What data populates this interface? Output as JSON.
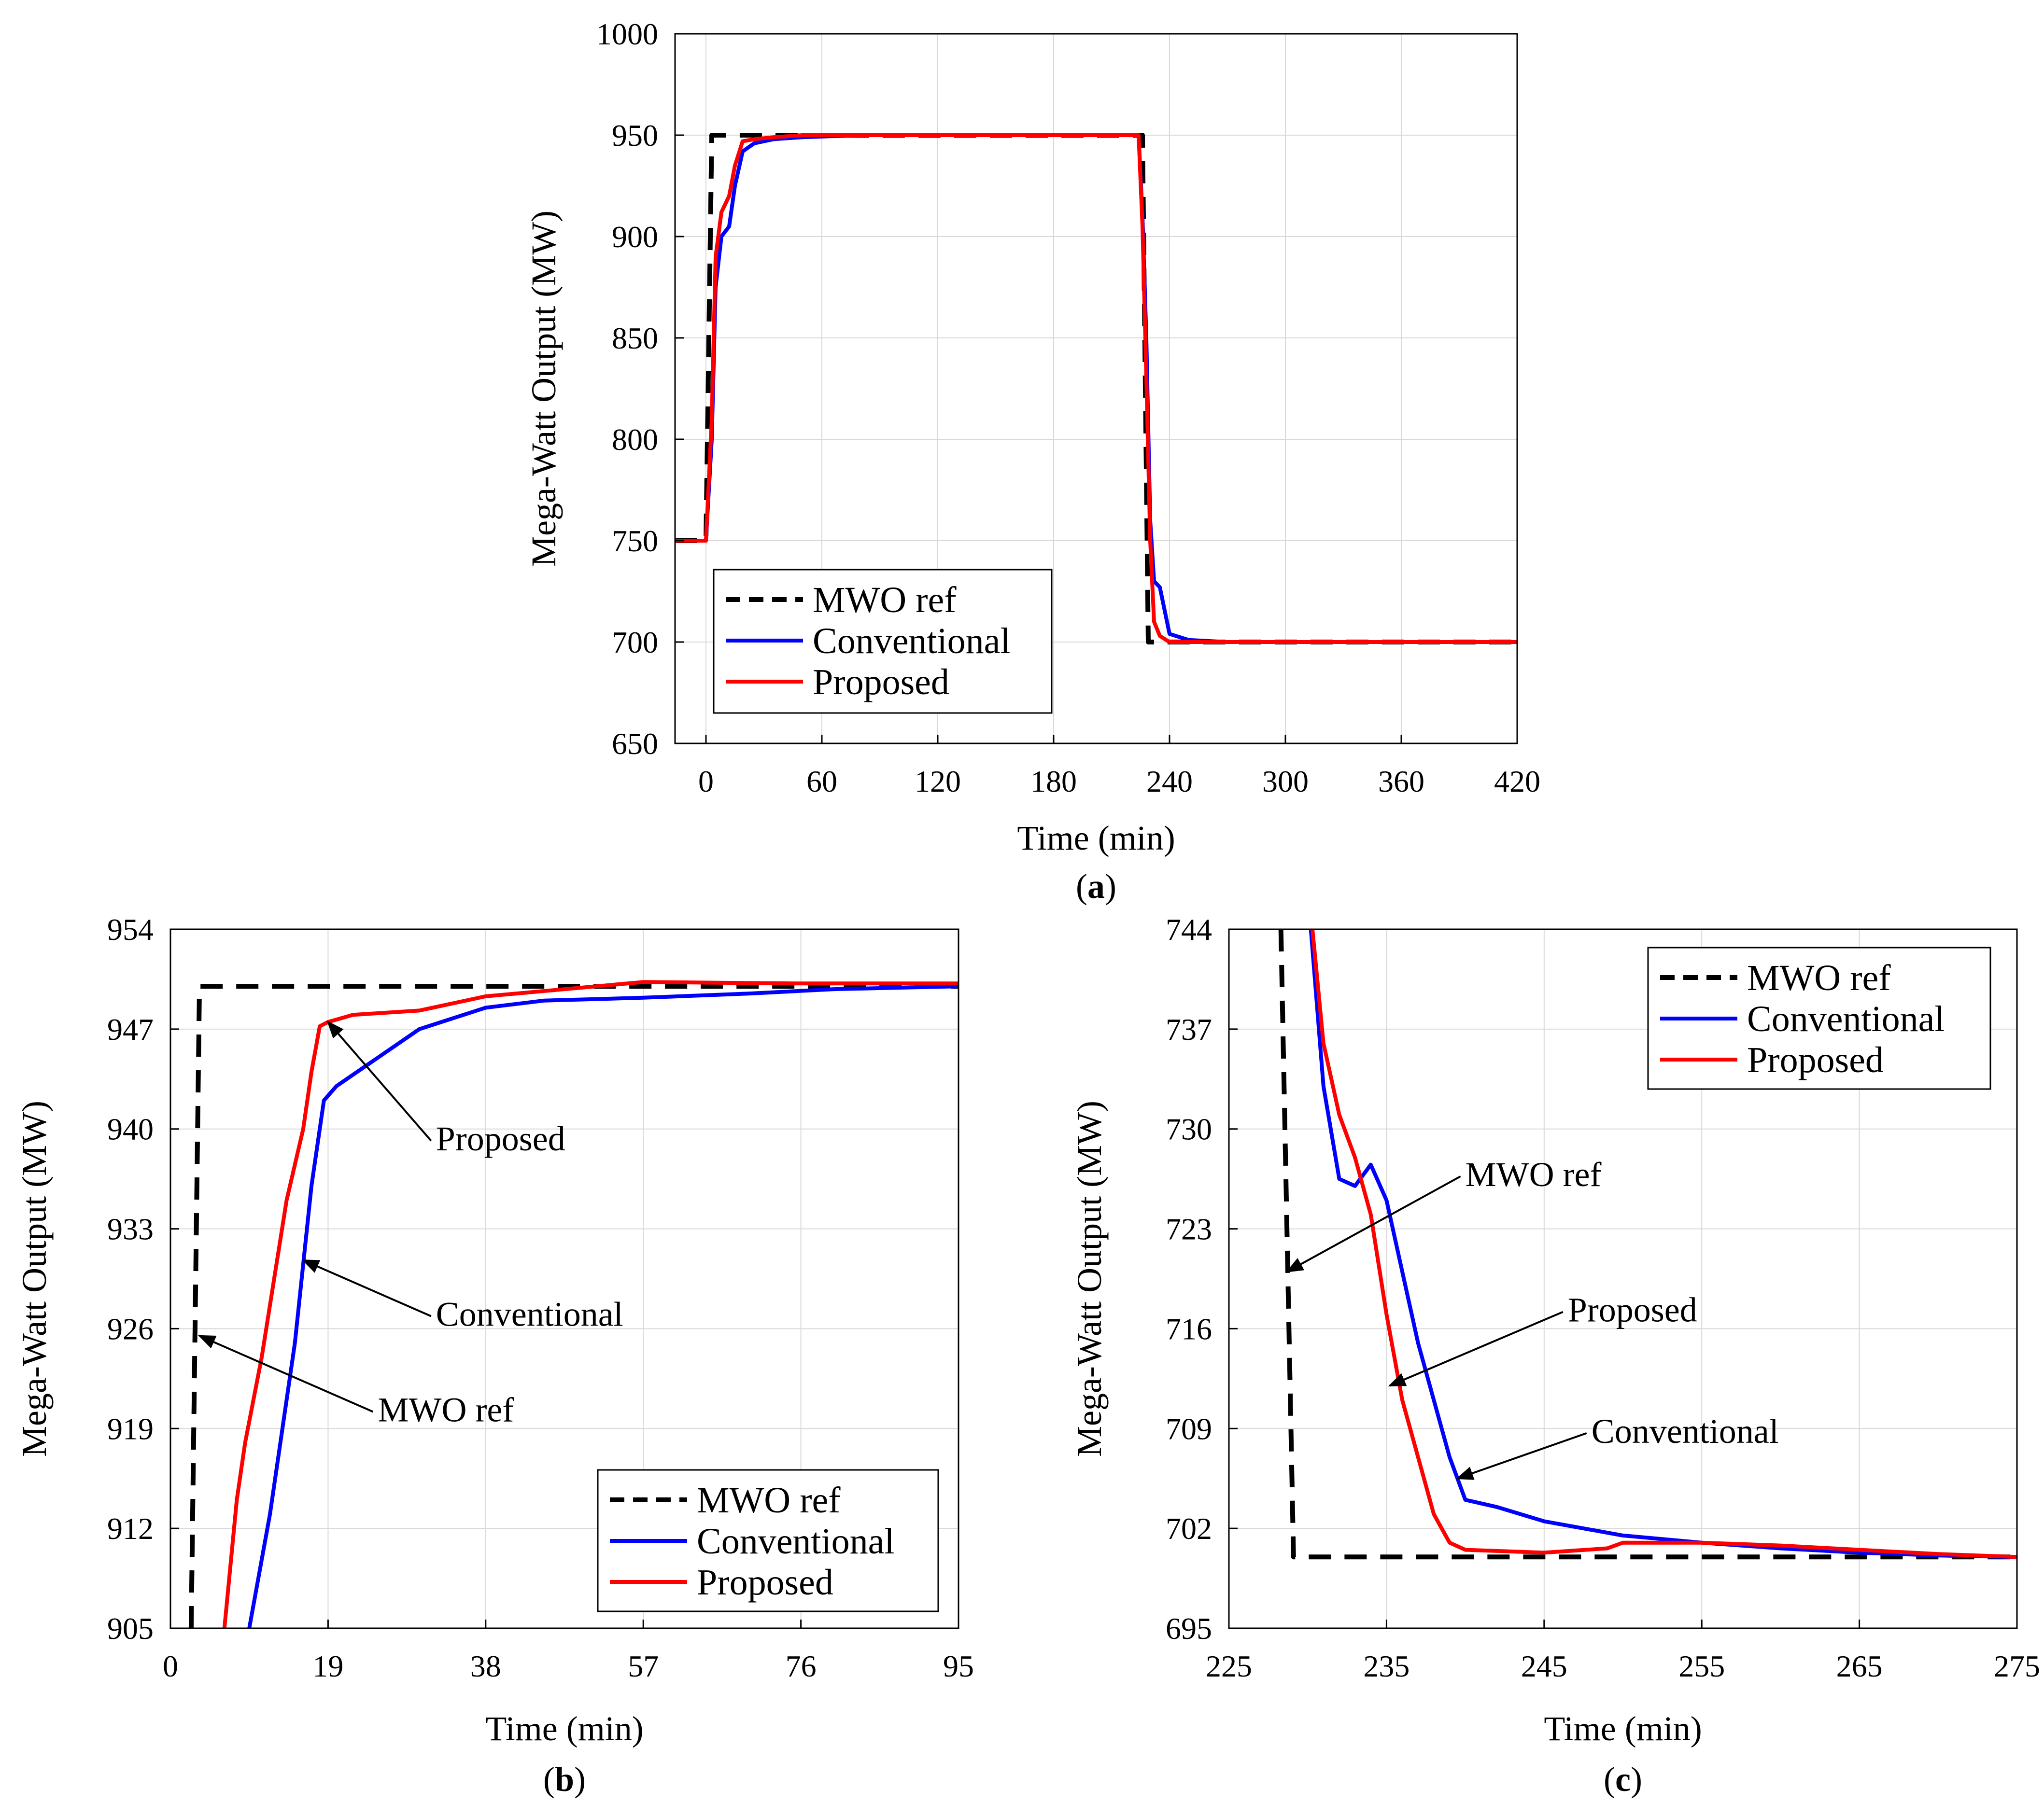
{
  "chart_data": [
    {
      "id": "a",
      "type": "line",
      "caption_open": "(",
      "caption_letter": "a",
      "caption_close": ")",
      "xlabel": "Time (min)",
      "ylabel": "Mega-Watt Output (MW)",
      "xlim": [
        -16,
        420
      ],
      "ylim": [
        650,
        1000
      ],
      "xticks": [
        0,
        60,
        120,
        180,
        240,
        300,
        360,
        420
      ],
      "yticks": [
        650,
        700,
        750,
        800,
        850,
        900,
        950,
        1000
      ],
      "grid": true,
      "legend": {
        "position": "bottom-left",
        "entries": [
          "MWO ref",
          "Conventional",
          "Proposed"
        ]
      },
      "series": [
        {
          "name": "MWO ref",
          "style": "dashed",
          "color": "#000000",
          "x": [
            -16,
            0,
            3,
            5,
            220,
            226,
            229,
            233,
            420
          ],
          "y": [
            750,
            750,
            950,
            950,
            950,
            950,
            700,
            700,
            700
          ]
        },
        {
          "name": "Conventional",
          "style": "solid",
          "color": "#0000ff",
          "x": [
            -16,
            0,
            3,
            5,
            8,
            12,
            15,
            19,
            25,
            35,
            50,
            80,
            120,
            180,
            224,
            226,
            228,
            230,
            232,
            235,
            240,
            250,
            270,
            300,
            360,
            420
          ],
          "y": [
            750,
            750,
            800,
            875,
            900,
            905,
            925,
            942,
            946,
            948,
            949,
            950,
            950,
            950,
            950,
            910,
            850,
            760,
            730,
            727,
            704,
            701,
            700,
            700,
            700,
            700
          ]
        },
        {
          "name": "Proposed",
          "style": "solid",
          "color": "#ff0000",
          "x": [
            -16,
            0,
            3,
            5,
            8,
            12,
            15,
            19,
            25,
            35,
            50,
            80,
            120,
            180,
            224,
            226,
            228,
            230,
            232,
            235,
            240,
            250,
            270,
            300,
            360,
            420
          ],
          "y": [
            750,
            750,
            810,
            890,
            912,
            920,
            935,
            947,
            948,
            949,
            950,
            950,
            950,
            950,
            950,
            905,
            830,
            750,
            710,
            703,
            700,
            700,
            700,
            700,
            700,
            700
          ]
        }
      ],
      "annotations": []
    },
    {
      "id": "b",
      "type": "line",
      "caption_open": "(",
      "caption_letter": "b",
      "caption_close": ")",
      "xlabel": "Time (min)",
      "ylabel": "Mega-Watt Output (MW)",
      "xlim": [
        0,
        95
      ],
      "ylim": [
        905,
        954
      ],
      "xticks": [
        0,
        19,
        38,
        57,
        76,
        95
      ],
      "yticks": [
        905,
        912,
        919,
        926,
        933,
        940,
        947,
        954
      ],
      "grid": true,
      "legend": {
        "position": "bottom-right",
        "entries": [
          "MWO ref",
          "Conventional",
          "Proposed"
        ]
      },
      "series": [
        {
          "name": "MWO ref",
          "style": "dashed",
          "color": "#000000",
          "x": [
            2.5,
            3.5,
            95
          ],
          "y": [
            905,
            950,
            950
          ]
        },
        {
          "name": "Conventional",
          "style": "solid",
          "color": "#0000ff",
          "x": [
            9.5,
            12,
            15,
            17,
            18.5,
            20,
            25,
            30,
            38,
            45,
            57,
            70,
            80,
            95
          ],
          "y": [
            905,
            913,
            925,
            936,
            942,
            943,
            945,
            947,
            948.5,
            949,
            949.2,
            949.5,
            949.8,
            950
          ]
        },
        {
          "name": "Proposed",
          "style": "solid",
          "color": "#ff0000",
          "x": [
            6.5,
            8,
            9,
            11,
            14,
            16,
            17,
            18,
            19,
            22,
            30,
            38,
            57,
            76,
            95
          ],
          "y": [
            905,
            914,
            918,
            924,
            935,
            940,
            944,
            947.2,
            947.5,
            948,
            948.3,
            949.3,
            950.3,
            950.2,
            950.2
          ]
        }
      ],
      "annotations": [
        {
          "text": "Proposed",
          "tip_x": 19,
          "tip_y": 947.5,
          "text_x": 32,
          "text_y": 938.5
        },
        {
          "text": "Conventional",
          "tip_x": 16,
          "tip_y": 930.8,
          "text_x": 32,
          "text_y": 926.2
        },
        {
          "text": "MWO ref",
          "tip_x": 3.5,
          "tip_y": 925.5,
          "text_x": 25,
          "text_y": 919.5
        }
      ]
    },
    {
      "id": "c",
      "type": "line",
      "caption_open": "(",
      "caption_letter": "c",
      "caption_close": ")",
      "xlabel": "Time (min)",
      "ylabel": "Mega-Watt Output (MW)",
      "xlim": [
        225,
        275
      ],
      "ylim": [
        695,
        744
      ],
      "xticks": [
        225,
        235,
        245,
        255,
        265,
        275
      ],
      "yticks": [
        695,
        702,
        709,
        716,
        723,
        730,
        737,
        744
      ],
      "grid": true,
      "legend": {
        "position": "top-right",
        "entries": [
          "MWO ref",
          "Conventional",
          "Proposed"
        ]
      },
      "series": [
        {
          "name": "MWO ref",
          "style": "dashed",
          "color": "#000000",
          "x": [
            228.3,
            229.1,
            275
          ],
          "y": [
            744,
            700,
            700
          ]
        },
        {
          "name": "Conventional",
          "style": "solid",
          "color": "#0000ff",
          "x": [
            230.2,
            231,
            232,
            233,
            234,
            235,
            236,
            237,
            238,
            239,
            240,
            242,
            245,
            250,
            255,
            260,
            265,
            270,
            275
          ],
          "y": [
            744,
            733,
            726.5,
            726,
            727.5,
            725,
            720,
            715,
            711,
            707,
            704,
            703.5,
            702.5,
            701.5,
            701,
            700.6,
            700.3,
            700.1,
            700
          ]
        },
        {
          "name": "Proposed",
          "style": "solid",
          "color": "#ff0000",
          "x": [
            230.3,
            231,
            232,
            233,
            234,
            235,
            236,
            237,
            238,
            239,
            240,
            245,
            249,
            250,
            255,
            260,
            265,
            270,
            275
          ],
          "y": [
            744,
            736,
            731,
            728,
            724,
            717,
            711,
            707,
            703,
            701,
            700.5,
            700.3,
            700.6,
            701,
            701,
            700.8,
            700.5,
            700.2,
            700
          ]
        }
      ],
      "annotations": [
        {
          "text": "MWO ref",
          "tip_x": 228.7,
          "tip_y": 720,
          "text_x": 240,
          "text_y": 726
        },
        {
          "text": "Proposed",
          "tip_x": 235.2,
          "tip_y": 712,
          "text_x": 246.5,
          "text_y": 716.5
        },
        {
          "text": "Conventional",
          "tip_x": 239.5,
          "tip_y": 705.5,
          "text_x": 248,
          "text_y": 708
        }
      ]
    }
  ]
}
